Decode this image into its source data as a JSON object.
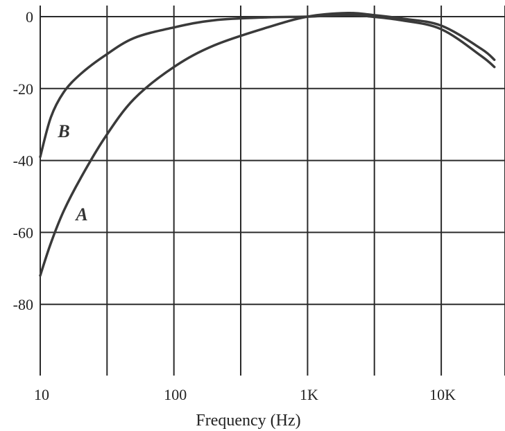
{
  "chart_data": {
    "type": "line",
    "title": "",
    "xlabel": "Frequency (Hz)",
    "ylabel": "",
    "xscale": "log",
    "xlim": [
      10,
      30000
    ],
    "ylim": [
      -100,
      0
    ],
    "grid": true,
    "legend": "none",
    "x_ticks": [
      {
        "value": 10,
        "label": "10"
      },
      {
        "value": 100,
        "label": "100"
      },
      {
        "value": 1000,
        "label": "1K"
      },
      {
        "value": 10000,
        "label": "10K"
      }
    ],
    "x_gridlines": [
      10,
      31.6,
      100,
      316,
      1000,
      3160,
      10000,
      30000
    ],
    "y_ticks": [
      {
        "value": 0,
        "label": "0"
      },
      {
        "value": -20,
        "label": "-20"
      },
      {
        "value": -40,
        "label": "-40"
      },
      {
        "value": -60,
        "label": "-60"
      },
      {
        "value": -80,
        "label": "-80"
      }
    ],
    "y_gridlines": [
      0,
      -20,
      -40,
      -60,
      -80
    ],
    "series": [
      {
        "name": "A",
        "x": [
          10,
          12,
          15,
          20,
          30,
          50,
          100,
          200,
          500,
          1000,
          2000,
          3000,
          5000,
          10000,
          20000,
          25000
        ],
        "y": [
          -72,
          -63,
          -54,
          -45,
          -34,
          -23,
          -14,
          -8,
          -3,
          0,
          1,
          0.5,
          -0.5,
          -2.5,
          -9,
          -12
        ]
      },
      {
        "name": "B",
        "x": [
          10,
          12,
          15,
          20,
          30,
          50,
          100,
          200,
          500,
          1000,
          2000,
          3000,
          5000,
          10000,
          20000,
          25000
        ],
        "y": [
          -39,
          -28,
          -21,
          -16,
          -11,
          -6,
          -3,
          -1,
          -0.2,
          0,
          0.5,
          0,
          -1,
          -3.5,
          -11,
          -14
        ]
      }
    ]
  },
  "colors": {
    "curve": "#3a3a3a",
    "grid": "#2a2a2a",
    "background": "#ffffff"
  }
}
